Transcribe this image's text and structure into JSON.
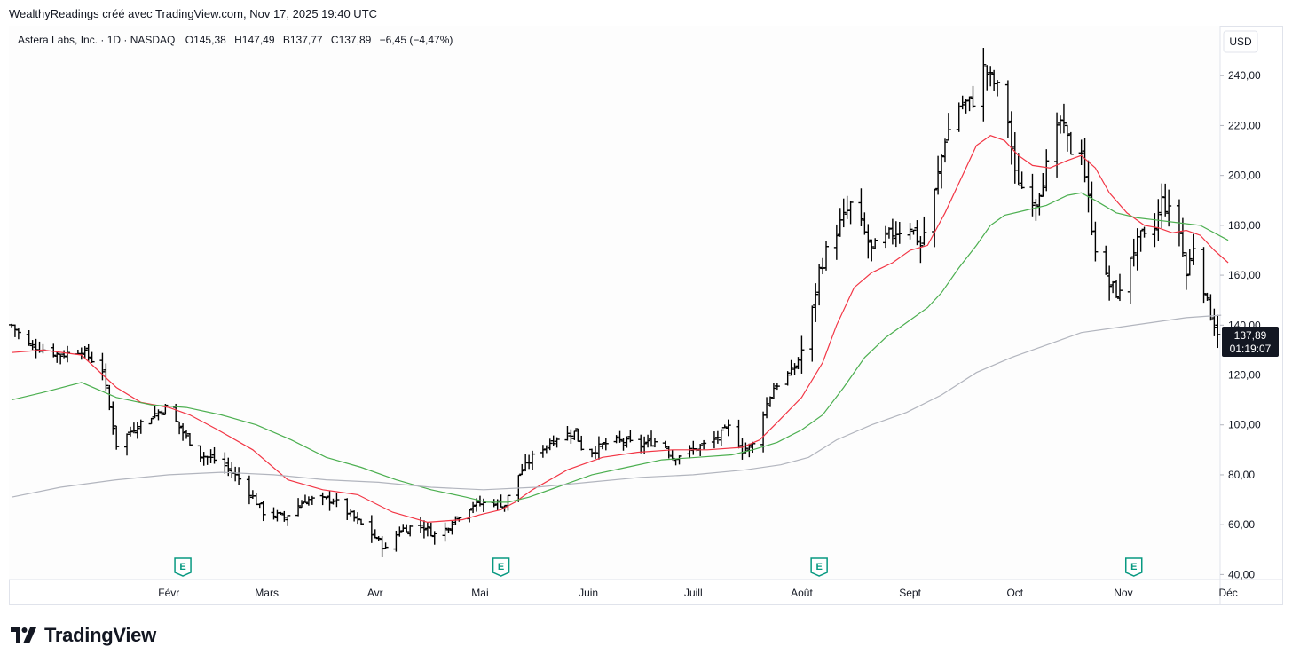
{
  "header": {
    "attribution": "WealthyReadings créé avec TradingView.com, Nov 17, 2025 19:40 UTC"
  },
  "brand": {
    "name": "TradingView"
  },
  "legend": {
    "symbol": "Astera Labs, Inc. · 1D · NASDAQ",
    "open": "O145,38",
    "high": "H147,49",
    "low": "B137,77",
    "close": "C137,89",
    "change": "−6,45 (−4,47%)"
  },
  "price_scale": {
    "currency": "USD",
    "last_price": "137,89",
    "countdown": "01:19:07"
  },
  "chart_data": {
    "type": "ohlc-bar",
    "title": "Astera Labs, Inc. · 1D · NASDAQ",
    "ylabel": "USD",
    "ylim": [
      38,
      260
    ],
    "y_ticks": [
      {
        "value": 40,
        "label": "40,00"
      },
      {
        "value": 60,
        "label": "60,00"
      },
      {
        "value": 80,
        "label": "80,00"
      },
      {
        "value": 100,
        "label": "100,00"
      },
      {
        "value": 120,
        "label": "120,00"
      },
      {
        "value": 140,
        "label": "140,00"
      },
      {
        "value": 160,
        "label": "160,00"
      },
      {
        "value": 180,
        "label": "180,00"
      },
      {
        "value": 200,
        "label": "200,00"
      },
      {
        "value": 220,
        "label": "220,00"
      },
      {
        "value": 240,
        "label": "240,00"
      }
    ],
    "x_range_days": [
      -14,
      334
    ],
    "x_ticks": [
      {
        "day": 31,
        "label": "Févr"
      },
      {
        "day": 59,
        "label": "Mars"
      },
      {
        "day": 90,
        "label": "Avr"
      },
      {
        "day": 120,
        "label": "Mai"
      },
      {
        "day": 151,
        "label": "Juin"
      },
      {
        "day": 181,
        "label": "Juill"
      },
      {
        "day": 212,
        "label": "Août"
      },
      {
        "day": 243,
        "label": "Sept"
      },
      {
        "day": 273,
        "label": "Oct"
      },
      {
        "day": 304,
        "label": "Nov"
      },
      {
        "day": 334,
        "label": "Déc"
      }
    ],
    "earnings_markers": [
      {
        "day": 35,
        "label": "E"
      },
      {
        "day": 126,
        "label": "E"
      },
      {
        "day": 217,
        "label": "E"
      },
      {
        "day": 307,
        "label": "E"
      }
    ],
    "price_path": [
      {
        "day": -14,
        "price": 140
      },
      {
        "day": -9,
        "price": 132
      },
      {
        "day": 0,
        "price": 128
      },
      {
        "day": 6,
        "price": 130
      },
      {
        "day": 12,
        "price": 122
      },
      {
        "day": 16,
        "price": 92
      },
      {
        "day": 22,
        "price": 100
      },
      {
        "day": 30,
        "price": 107
      },
      {
        "day": 36,
        "price": 95
      },
      {
        "day": 40,
        "price": 88
      },
      {
        "day": 46,
        "price": 85
      },
      {
        "day": 52,
        "price": 77
      },
      {
        "day": 58,
        "price": 65
      },
      {
        "day": 64,
        "price": 63
      },
      {
        "day": 70,
        "price": 70
      },
      {
        "day": 78,
        "price": 70
      },
      {
        "day": 86,
        "price": 60
      },
      {
        "day": 90,
        "price": 55
      },
      {
        "day": 93,
        "price": 50
      },
      {
        "day": 97,
        "price": 58
      },
      {
        "day": 103,
        "price": 60
      },
      {
        "day": 108,
        "price": 55
      },
      {
        "day": 113,
        "price": 63
      },
      {
        "day": 118,
        "price": 68
      },
      {
        "day": 124,
        "price": 69
      },
      {
        "day": 127,
        "price": 68
      },
      {
        "day": 131,
        "price": 80
      },
      {
        "day": 136,
        "price": 89
      },
      {
        "day": 142,
        "price": 95
      },
      {
        "day": 147,
        "price": 97
      },
      {
        "day": 150,
        "price": 88
      },
      {
        "day": 158,
        "price": 94
      },
      {
        "day": 166,
        "price": 92
      },
      {
        "day": 172,
        "price": 94
      },
      {
        "day": 175,
        "price": 87
      },
      {
        "day": 181,
        "price": 90
      },
      {
        "day": 187,
        "price": 94
      },
      {
        "day": 191,
        "price": 99
      },
      {
        "day": 195,
        "price": 90
      },
      {
        "day": 198,
        "price": 92
      },
      {
        "day": 201,
        "price": 105
      },
      {
        "day": 204,
        "price": 115
      },
      {
        "day": 210,
        "price": 123
      },
      {
        "day": 214,
        "price": 137
      },
      {
        "day": 217,
        "price": 162
      },
      {
        "day": 220,
        "price": 173
      },
      {
        "day": 226,
        "price": 188
      },
      {
        "day": 229,
        "price": 180
      },
      {
        "day": 232,
        "price": 170
      },
      {
        "day": 238,
        "price": 177
      },
      {
        "day": 243,
        "price": 180
      },
      {
        "day": 246,
        "price": 172
      },
      {
        "day": 250,
        "price": 193
      },
      {
        "day": 253,
        "price": 215
      },
      {
        "day": 257,
        "price": 228
      },
      {
        "day": 261,
        "price": 230
      },
      {
        "day": 264,
        "price": 243
      },
      {
        "day": 268,
        "price": 235
      },
      {
        "day": 271,
        "price": 222
      },
      {
        "day": 273,
        "price": 200
      },
      {
        "day": 276,
        "price": 193
      },
      {
        "day": 279,
        "price": 190
      },
      {
        "day": 283,
        "price": 208
      },
      {
        "day": 286,
        "price": 222
      },
      {
        "day": 289,
        "price": 210
      },
      {
        "day": 291,
        "price": 222
      },
      {
        "day": 293,
        "price": 200
      },
      {
        "day": 295,
        "price": 180
      },
      {
        "day": 297,
        "price": 163
      },
      {
        "day": 300,
        "price": 156
      },
      {
        "day": 303,
        "price": 152
      },
      {
        "day": 306,
        "price": 168
      },
      {
        "day": 309,
        "price": 175
      },
      {
        "day": 312,
        "price": 173
      },
      {
        "day": 315,
        "price": 190
      },
      {
        "day": 318,
        "price": 183
      },
      {
        "day": 320,
        "price": 178
      },
      {
        "day": 322,
        "price": 160
      },
      {
        "day": 324,
        "price": 172
      },
      {
        "day": 326,
        "price": 163
      },
      {
        "day": 328,
        "price": 148
      },
      {
        "day": 330,
        "price": 141
      },
      {
        "day": 331,
        "price": 138
      }
    ],
    "series": [
      {
        "name": "MA rouge",
        "color": "#f23645",
        "points": [
          {
            "day": -14,
            "value": 129
          },
          {
            "day": -5,
            "value": 130
          },
          {
            "day": 6,
            "value": 128
          },
          {
            "day": 16,
            "value": 115
          },
          {
            "day": 23,
            "value": 109
          },
          {
            "day": 31,
            "value": 107
          },
          {
            "day": 37,
            "value": 104
          },
          {
            "day": 45,
            "value": 98
          },
          {
            "day": 55,
            "value": 90
          },
          {
            "day": 65,
            "value": 78
          },
          {
            "day": 75,
            "value": 74
          },
          {
            "day": 85,
            "value": 72
          },
          {
            "day": 95,
            "value": 65
          },
          {
            "day": 105,
            "value": 61
          },
          {
            "day": 115,
            "value": 62
          },
          {
            "day": 120,
            "value": 64
          },
          {
            "day": 126,
            "value": 66
          },
          {
            "day": 130,
            "value": 69
          },
          {
            "day": 135,
            "value": 74
          },
          {
            "day": 145,
            "value": 82
          },
          {
            "day": 155,
            "value": 87
          },
          {
            "day": 165,
            "value": 89
          },
          {
            "day": 175,
            "value": 90
          },
          {
            "day": 185,
            "value": 90
          },
          {
            "day": 195,
            "value": 91
          },
          {
            "day": 200,
            "value": 94
          },
          {
            "day": 205,
            "value": 101
          },
          {
            "day": 212,
            "value": 111
          },
          {
            "day": 218,
            "value": 125
          },
          {
            "day": 222,
            "value": 140
          },
          {
            "day": 227,
            "value": 155
          },
          {
            "day": 232,
            "value": 161
          },
          {
            "day": 238,
            "value": 165
          },
          {
            "day": 243,
            "value": 170
          },
          {
            "day": 248,
            "value": 172
          },
          {
            "day": 253,
            "value": 185
          },
          {
            "day": 258,
            "value": 200
          },
          {
            "day": 262,
            "value": 212
          },
          {
            "day": 266,
            "value": 216
          },
          {
            "day": 270,
            "value": 214
          },
          {
            "day": 274,
            "value": 208
          },
          {
            "day": 278,
            "value": 204
          },
          {
            "day": 283,
            "value": 203
          },
          {
            "day": 288,
            "value": 206
          },
          {
            "day": 292,
            "value": 208
          },
          {
            "day": 296,
            "value": 203
          },
          {
            "day": 300,
            "value": 193
          },
          {
            "day": 305,
            "value": 185
          },
          {
            "day": 310,
            "value": 180
          },
          {
            "day": 314,
            "value": 179
          },
          {
            "day": 318,
            "value": 177
          },
          {
            "day": 322,
            "value": 178
          },
          {
            "day": 326,
            "value": 176
          },
          {
            "day": 330,
            "value": 170
          },
          {
            "day": 334,
            "value": 165
          }
        ]
      },
      {
        "name": "MA verte",
        "color": "#4caf50",
        "points": [
          {
            "day": -14,
            "value": 110
          },
          {
            "day": -5,
            "value": 113
          },
          {
            "day": 6,
            "value": 117
          },
          {
            "day": 16,
            "value": 111
          },
          {
            "day": 26,
            "value": 108
          },
          {
            "day": 36,
            "value": 107
          },
          {
            "day": 46,
            "value": 104
          },
          {
            "day": 56,
            "value": 100
          },
          {
            "day": 66,
            "value": 94
          },
          {
            "day": 76,
            "value": 87
          },
          {
            "day": 86,
            "value": 83
          },
          {
            "day": 96,
            "value": 78
          },
          {
            "day": 106,
            "value": 74
          },
          {
            "day": 116,
            "value": 71
          },
          {
            "day": 122,
            "value": 69
          },
          {
            "day": 128,
            "value": 69
          },
          {
            "day": 134,
            "value": 71
          },
          {
            "day": 142,
            "value": 75
          },
          {
            "day": 152,
            "value": 80
          },
          {
            "day": 162,
            "value": 83
          },
          {
            "day": 172,
            "value": 86
          },
          {
            "day": 182,
            "value": 87
          },
          {
            "day": 192,
            "value": 88
          },
          {
            "day": 198,
            "value": 90
          },
          {
            "day": 205,
            "value": 93
          },
          {
            "day": 212,
            "value": 98
          },
          {
            "day": 218,
            "value": 104
          },
          {
            "day": 224,
            "value": 115
          },
          {
            "day": 230,
            "value": 127
          },
          {
            "day": 236,
            "value": 135
          },
          {
            "day": 242,
            "value": 141
          },
          {
            "day": 248,
            "value": 147
          },
          {
            "day": 252,
            "value": 153
          },
          {
            "day": 257,
            "value": 163
          },
          {
            "day": 262,
            "value": 172
          },
          {
            "day": 266,
            "value": 180
          },
          {
            "day": 270,
            "value": 184
          },
          {
            "day": 276,
            "value": 186
          },
          {
            "day": 282,
            "value": 188
          },
          {
            "day": 288,
            "value": 192
          },
          {
            "day": 292,
            "value": 193
          },
          {
            "day": 296,
            "value": 190
          },
          {
            "day": 302,
            "value": 185
          },
          {
            "day": 308,
            "value": 183
          },
          {
            "day": 314,
            "value": 182
          },
          {
            "day": 320,
            "value": 181
          },
          {
            "day": 326,
            "value": 180
          },
          {
            "day": 334,
            "value": 174
          }
        ]
      },
      {
        "name": "MA grise",
        "color": "#b2b5be",
        "points": [
          {
            "day": -14,
            "value": 71
          },
          {
            "day": 0,
            "value": 75
          },
          {
            "day": 16,
            "value": 78
          },
          {
            "day": 31,
            "value": 80
          },
          {
            "day": 46,
            "value": 81
          },
          {
            "day": 61,
            "value": 80
          },
          {
            "day": 76,
            "value": 78
          },
          {
            "day": 91,
            "value": 77
          },
          {
            "day": 106,
            "value": 75
          },
          {
            "day": 121,
            "value": 74
          },
          {
            "day": 136,
            "value": 75
          },
          {
            "day": 151,
            "value": 77
          },
          {
            "day": 166,
            "value": 79
          },
          {
            "day": 181,
            "value": 80
          },
          {
            "day": 196,
            "value": 82
          },
          {
            "day": 206,
            "value": 84
          },
          {
            "day": 214,
            "value": 87
          },
          {
            "day": 222,
            "value": 94
          },
          {
            "day": 232,
            "value": 100
          },
          {
            "day": 242,
            "value": 105
          },
          {
            "day": 252,
            "value": 112
          },
          {
            "day": 262,
            "value": 121
          },
          {
            "day": 272,
            "value": 127
          },
          {
            "day": 282,
            "value": 132
          },
          {
            "day": 292,
            "value": 137
          },
          {
            "day": 302,
            "value": 139
          },
          {
            "day": 312,
            "value": 141
          },
          {
            "day": 322,
            "value": 143
          },
          {
            "day": 332,
            "value": 144
          }
        ]
      }
    ]
  }
}
